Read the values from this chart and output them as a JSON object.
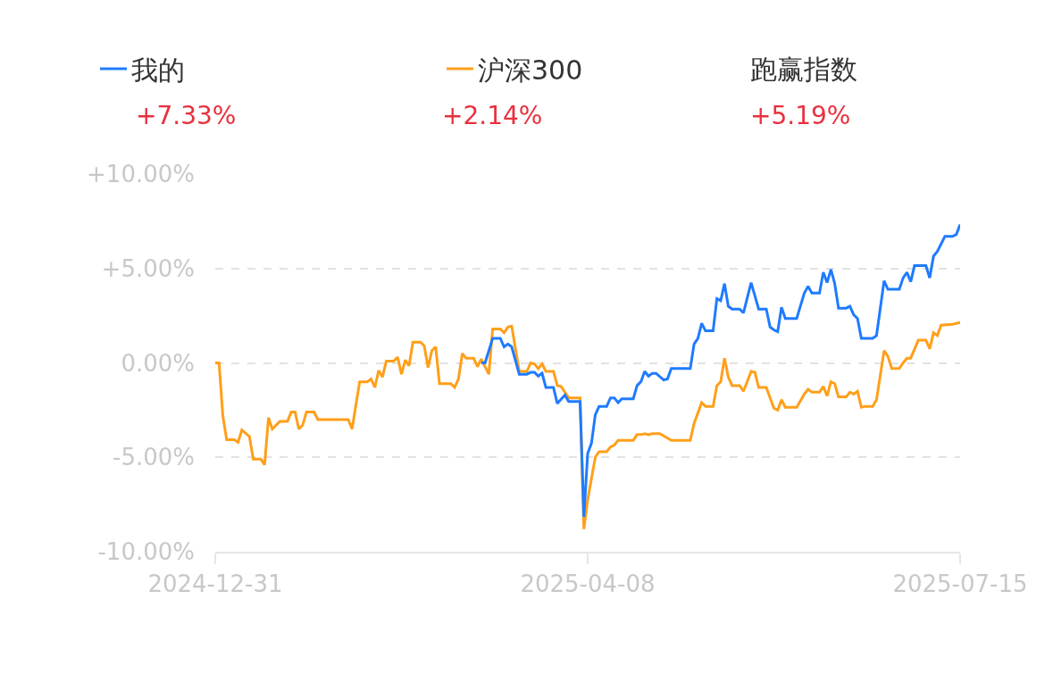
{
  "chart_data": {
    "type": "line",
    "annotations": [
      "+7.33%",
      "+2.14%",
      "跑赢指数",
      "+5.19%"
    ],
    "series": [
      {
        "name": "我的",
        "color": "#1f7bff",
        "x": [
          "2025-03-11",
          "2025-03-12",
          "2025-03-14",
          "2025-03-16",
          "2025-03-17",
          "2025-03-18",
          "2025-03-19",
          "2025-03-21",
          "2025-03-23",
          "2025-03-24",
          "2025-03-25",
          "2025-03-26",
          "2025-03-27",
          "2025-03-28",
          "2025-03-30",
          "2025-03-31",
          "2025-04-02",
          "2025-04-03",
          "2025-04-06",
          "2025-04-07",
          "2025-04-08",
          "2025-04-09",
          "2025-04-10",
          "2025-04-11",
          "2025-04-13",
          "2025-04-14",
          "2025-04-15",
          "2025-04-16",
          "2025-04-17",
          "2025-04-20",
          "2025-04-21",
          "2025-04-22",
          "2025-04-23",
          "2025-04-24",
          "2025-04-25",
          "2025-04-26",
          "2025-04-28",
          "2025-04-29",
          "2025-04-30",
          "2025-05-05",
          "2025-05-06",
          "2025-05-07",
          "2025-05-08",
          "2025-05-09",
          "2025-05-11",
          "2025-05-12",
          "2025-05-13",
          "2025-05-14",
          "2025-05-15",
          "2025-05-16",
          "2025-05-18",
          "2025-05-19",
          "2025-05-21",
          "2025-05-23",
          "2025-05-25",
          "2025-05-26",
          "2025-05-27",
          "2025-05-28",
          "2025-05-29",
          "2025-05-30",
          "2025-06-02",
          "2025-06-04",
          "2025-06-05",
          "2025-06-06",
          "2025-06-08",
          "2025-06-09",
          "2025-06-10",
          "2025-06-11",
          "2025-06-12",
          "2025-06-13",
          "2025-06-15",
          "2025-06-16",
          "2025-06-17",
          "2025-06-18",
          "2025-06-19",
          "2025-06-22",
          "2025-06-23",
          "2025-06-25",
          "2025-06-26",
          "2025-06-29",
          "2025-06-30",
          "2025-07-01",
          "2025-07-02",
          "2025-07-03",
          "2025-07-06",
          "2025-07-07",
          "2025-07-08",
          "2025-07-09",
          "2025-07-11",
          "2025-07-13",
          "2025-07-14",
          "2025-07-15"
        ],
        "values": [
          0.0,
          0.0,
          1.3,
          1.3,
          0.85,
          1.0,
          0.85,
          -0.6,
          -0.6,
          -0.5,
          -0.5,
          -0.7,
          -0.55,
          -1.3,
          -1.3,
          -2.15,
          -1.7,
          -2.05,
          -2.05,
          -8.15,
          -4.8,
          -4.25,
          -2.75,
          -2.3,
          -2.3,
          -1.85,
          -1.85,
          -2.1,
          -1.9,
          -1.9,
          -1.2,
          -1.0,
          -0.45,
          -0.7,
          -0.55,
          -0.55,
          -0.9,
          -0.85,
          -0.3,
          -0.3,
          1.0,
          1.3,
          2.1,
          1.7,
          1.7,
          3.4,
          3.3,
          4.2,
          3.0,
          2.85,
          2.85,
          2.65,
          4.25,
          2.85,
          2.85,
          1.9,
          1.75,
          1.65,
          2.95,
          2.35,
          2.35,
          3.7,
          4.05,
          3.7,
          3.7,
          4.8,
          4.25,
          4.95,
          4.2,
          2.9,
          2.9,
          3.0,
          2.55,
          2.35,
          1.3,
          1.3,
          1.45,
          4.35,
          3.9,
          3.9,
          4.5,
          4.8,
          4.3,
          5.15,
          5.15,
          4.5,
          5.65,
          5.9,
          6.7,
          6.7,
          6.8,
          7.33
        ]
      },
      {
        "name": "沪深300",
        "color": "#ff9f1a",
        "x": [
          "2024-12-31",
          "2025-01-01",
          "2025-01-02",
          "2025-01-03",
          "2025-01-05",
          "2025-01-06",
          "2025-01-07",
          "2025-01-09",
          "2025-01-10",
          "2025-01-12",
          "2025-01-13",
          "2025-01-14",
          "2025-01-15",
          "2025-01-17",
          "2025-01-19",
          "2025-01-20",
          "2025-01-21",
          "2025-01-22",
          "2025-01-23",
          "2025-01-24",
          "2025-01-26",
          "2025-01-27",
          "2025-02-04",
          "2025-02-05",
          "2025-02-07",
          "2025-02-09",
          "2025-02-10",
          "2025-02-11",
          "2025-02-12",
          "2025-02-13",
          "2025-02-14",
          "2025-02-16",
          "2025-02-17",
          "2025-02-18",
          "2025-02-19",
          "2025-02-20",
          "2025-02-21",
          "2025-02-23",
          "2025-02-24",
          "2025-02-25",
          "2025-02-26",
          "2025-02-27",
          "2025-02-28",
          "2025-03-03",
          "2025-03-04",
          "2025-03-05",
          "2025-03-06",
          "2025-03-07",
          "2025-03-09",
          "2025-03-10",
          "2025-03-11",
          "2025-03-13",
          "2025-03-14",
          "2025-03-16",
          "2025-03-17",
          "2025-03-18",
          "2025-03-19",
          "2025-03-21",
          "2025-03-23",
          "2025-03-24",
          "2025-03-25",
          "2025-03-26",
          "2025-03-27",
          "2025-03-28",
          "2025-03-30",
          "2025-03-31",
          "2025-04-01",
          "2025-04-02",
          "2025-04-03",
          "2025-04-06",
          "2025-04-07",
          "2025-04-08",
          "2025-04-10",
          "2025-04-11",
          "2025-04-13",
          "2025-04-14",
          "2025-04-15",
          "2025-04-16",
          "2025-04-20",
          "2025-04-21",
          "2025-04-22",
          "2025-04-23",
          "2025-04-24",
          "2025-04-25",
          "2025-04-27",
          "2025-04-30",
          "2025-05-05",
          "2025-05-06",
          "2025-05-08",
          "2025-05-09",
          "2025-05-11",
          "2025-05-12",
          "2025-05-13",
          "2025-05-14",
          "2025-05-15",
          "2025-05-16",
          "2025-05-18",
          "2025-05-19",
          "2025-05-21",
          "2025-05-22",
          "2025-05-23",
          "2025-05-25",
          "2025-05-27",
          "2025-05-28",
          "2025-05-29",
          "2025-05-30",
          "2025-06-02",
          "2025-06-04",
          "2025-06-05",
          "2025-06-06",
          "2025-06-08",
          "2025-06-09",
          "2025-06-10",
          "2025-06-11",
          "2025-06-12",
          "2025-06-13",
          "2025-06-15",
          "2025-06-16",
          "2025-06-17",
          "2025-06-18",
          "2025-06-19",
          "2025-06-20",
          "2025-06-22",
          "2025-06-23",
          "2025-06-25",
          "2025-06-26",
          "2025-06-27",
          "2025-06-29",
          "2025-06-30",
          "2025-07-01",
          "2025-07-02",
          "2025-07-04",
          "2025-07-06",
          "2025-07-07",
          "2025-07-08",
          "2025-07-09",
          "2025-07-10",
          "2025-07-13",
          "2025-07-15"
        ],
        "values": [
          0.0,
          0.0,
          -2.8,
          -4.07,
          -4.07,
          -4.2,
          -3.55,
          -3.9,
          -5.1,
          -5.1,
          -5.4,
          -2.9,
          -3.5,
          -3.1,
          -3.1,
          -2.6,
          -2.6,
          -3.5,
          -3.3,
          -2.6,
          -2.6,
          -3.0,
          -3.0,
          -3.5,
          -1.0,
          -1.0,
          -0.85,
          -1.3,
          -0.4,
          -0.75,
          0.1,
          0.1,
          0.3,
          -0.6,
          0.15,
          -0.15,
          1.1,
          1.1,
          0.9,
          -0.25,
          0.65,
          0.85,
          -1.1,
          -1.1,
          -1.3,
          -0.85,
          0.5,
          0.25,
          0.25,
          -0.2,
          0.2,
          -0.6,
          1.8,
          1.8,
          1.6,
          1.9,
          1.95,
          -0.45,
          -0.45,
          0.0,
          -0.05,
          -0.3,
          -0.05,
          -0.45,
          -0.45,
          -1.2,
          -1.25,
          -1.55,
          -1.85,
          -1.85,
          -8.8,
          -7.25,
          -5.0,
          -4.7,
          -4.7,
          -4.45,
          -4.35,
          -4.1,
          -4.1,
          -3.8,
          -3.8,
          -3.75,
          -3.8,
          -3.75,
          -3.75,
          -4.1,
          -4.1,
          -3.2,
          -2.1,
          -2.3,
          -2.3,
          -1.2,
          -1.0,
          0.25,
          -0.75,
          -1.2,
          -1.2,
          -1.5,
          -0.45,
          -0.5,
          -1.3,
          -1.3,
          -2.4,
          -2.5,
          -1.95,
          -2.35,
          -2.35,
          -1.65,
          -1.4,
          -1.55,
          -1.55,
          -1.25,
          -1.75,
          -1.0,
          -1.1,
          -1.8,
          -1.8,
          -1.55,
          -1.65,
          -1.5,
          -2.35,
          -2.3,
          -2.3,
          -1.95,
          0.65,
          0.35,
          -0.3,
          -0.3,
          0.0,
          0.25,
          0.25,
          1.2,
          1.2,
          0.75,
          1.6,
          1.45,
          2.0,
          2.05,
          2.14
        ]
      }
    ],
    "xlim": [
      "2024-12-31",
      "2025-07-15"
    ],
    "xticks": [
      "2024-12-31",
      "2025-04-08",
      "2025-07-15"
    ],
    "ylim": [
      -10,
      10
    ],
    "yticks": [
      {
        "value": 10,
        "label": "+10.00%"
      },
      {
        "value": 5,
        "label": "+5.00%"
      },
      {
        "value": 0,
        "label": "0.00%"
      },
      {
        "value": -5,
        "label": "-5.00%"
      },
      {
        "value": -10,
        "label": "-10.00%"
      }
    ],
    "grid": "y",
    "legend": "top left"
  }
}
